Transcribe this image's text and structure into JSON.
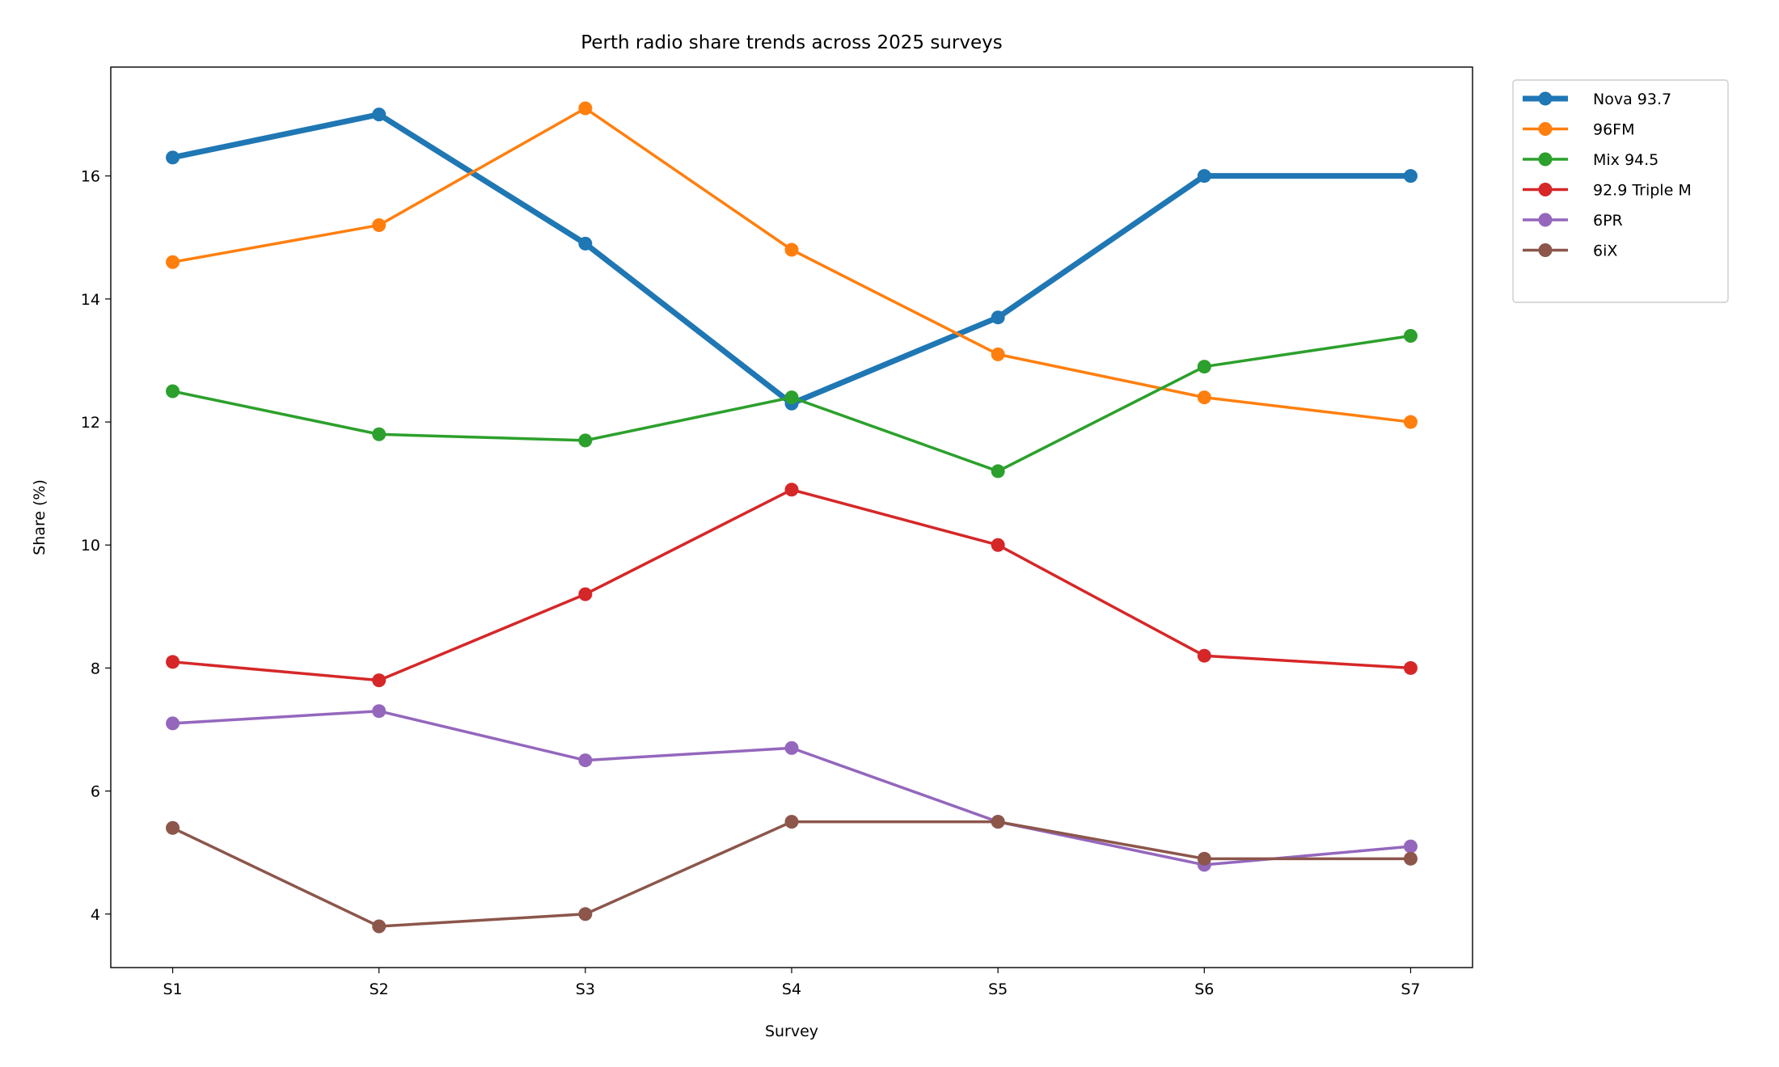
{
  "chart_data": {
    "type": "line",
    "title": "Perth radio share trends across 2025 surveys",
    "xlabel": "Survey",
    "ylabel": "Share (%)",
    "categories": [
      "S1",
      "S2",
      "S3",
      "S4",
      "S5",
      "S6",
      "S7"
    ],
    "ylim": [
      3.13,
      17.77
    ],
    "yticks": [
      4,
      6,
      8,
      10,
      12,
      14,
      16
    ],
    "grid": false,
    "legend_position": "outside-top-right",
    "series": [
      {
        "name": "Nova 93.7",
        "color": "#1f77b4",
        "emphasized": true,
        "values": [
          16.3,
          17.0,
          14.9,
          12.3,
          13.7,
          16.0,
          16.0
        ]
      },
      {
        "name": "96FM",
        "color": "#ff7f0e",
        "emphasized": false,
        "values": [
          14.6,
          15.2,
          17.1,
          14.8,
          13.1,
          12.4,
          12.0
        ]
      },
      {
        "name": "Mix 94.5",
        "color": "#2ca02c",
        "emphasized": false,
        "values": [
          12.5,
          11.8,
          11.7,
          12.4,
          11.2,
          12.9,
          13.4
        ]
      },
      {
        "name": "92.9 Triple M",
        "color": "#d62728",
        "emphasized": false,
        "values": [
          8.1,
          7.8,
          9.2,
          10.9,
          10.0,
          8.2,
          8.0
        ]
      },
      {
        "name": "6PR",
        "color": "#9467bd",
        "emphasized": false,
        "values": [
          7.1,
          7.3,
          6.5,
          6.7,
          5.5,
          4.8,
          5.1
        ]
      },
      {
        "name": "6iX",
        "color": "#8c564b",
        "emphasized": false,
        "values": [
          5.4,
          3.8,
          4.0,
          5.5,
          5.5,
          4.9,
          4.9
        ]
      }
    ]
  }
}
